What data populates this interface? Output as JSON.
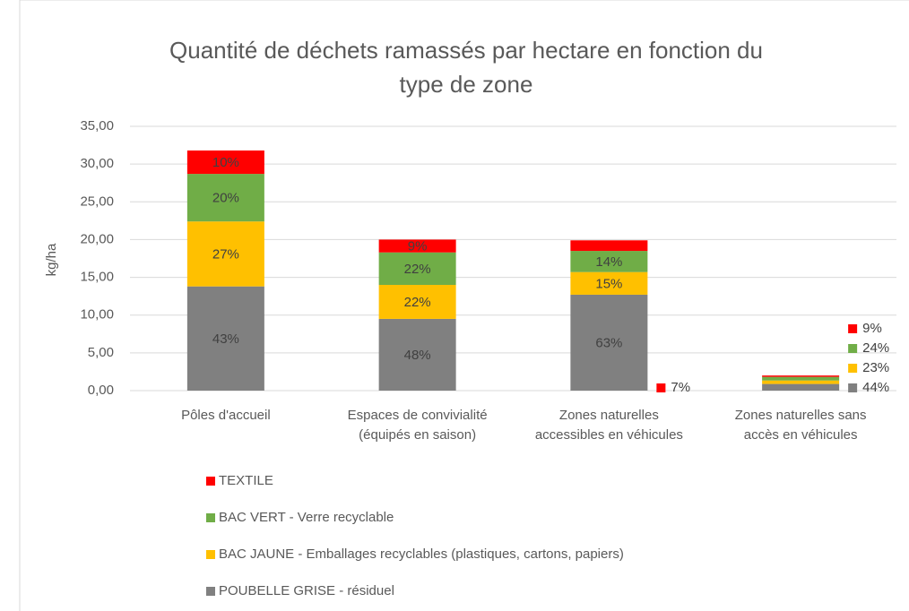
{
  "chart_data": {
    "type": "stacked_bar",
    "title": [
      "Quantité de déchets ramassés par hectare en fonction du",
      "type de zone"
    ],
    "ylabel": "kg/ha",
    "categories": [
      [
        "Pôles d'accueil"
      ],
      [
        "Espaces de convivialité",
        "(équipés en saison)"
      ],
      [
        "Zones naturelles",
        "accessibles en véhicules"
      ],
      [
        "Zones naturelles sans",
        "accès en véhicules"
      ]
    ],
    "series": [
      {
        "name": "POUBELLE GRISE - résiduel",
        "color": "#808080",
        "values": [
          13.8,
          9.5,
          12.7,
          0.88
        ],
        "share_labels": [
          "43%",
          "48%",
          "63%",
          "44%"
        ]
      },
      {
        "name": "BAC JAUNE - Emballages recyclables (plastiques, cartons, papiers)",
        "color": "#ffc000",
        "values": [
          8.6,
          4.5,
          3.0,
          0.46
        ],
        "share_labels": [
          "27%",
          "22%",
          "15%",
          "23%"
        ]
      },
      {
        "name": "BAC VERT - Verre recyclable",
        "color": "#70ad47",
        "values": [
          6.3,
          4.3,
          2.8,
          0.48
        ],
        "share_labels": [
          "20%",
          "22%",
          "14%",
          "24%"
        ]
      },
      {
        "name": "TEXTILE",
        "color": "#ff0000",
        "values": [
          3.1,
          1.7,
          1.4,
          0.18
        ],
        "share_labels": [
          "10%",
          "9%",
          "7%",
          "9%"
        ]
      }
    ],
    "ylim": [
      0,
      35
    ],
    "yticks": [
      {
        "value": 0,
        "label": "0,00"
      },
      {
        "value": 5,
        "label": "5,00"
      },
      {
        "value": 10,
        "label": "10,00"
      },
      {
        "value": 15,
        "label": "15,00"
      },
      {
        "value": 20,
        "label": "20,00"
      },
      {
        "value": 25,
        "label": "25,00"
      },
      {
        "value": 30,
        "label": "30,00"
      },
      {
        "value": 35,
        "label": "35,00"
      }
    ],
    "grid": true,
    "legend": "bottom"
  }
}
